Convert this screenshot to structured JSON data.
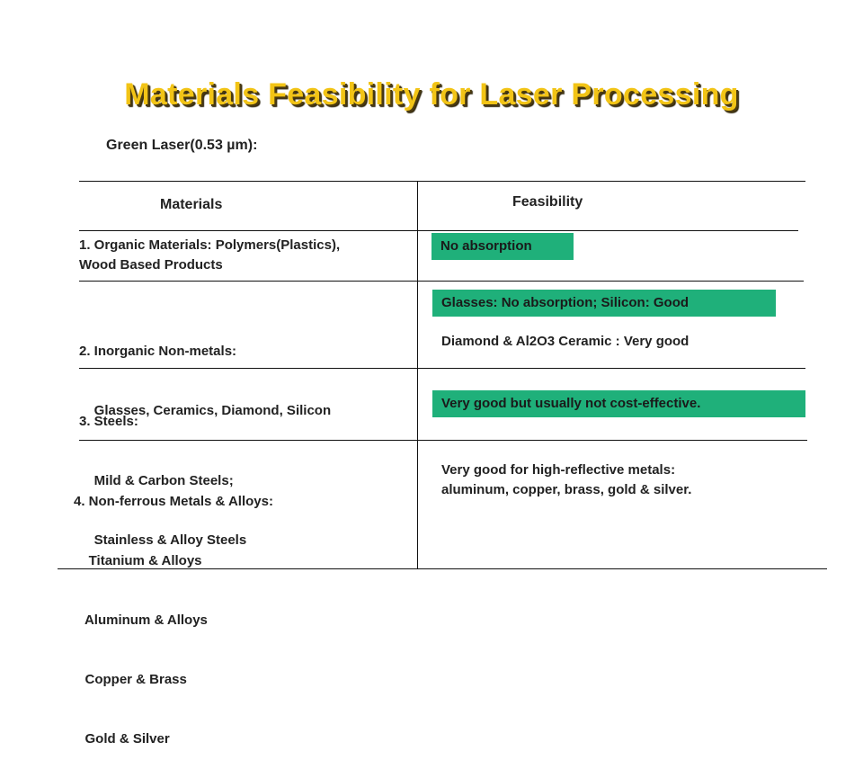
{
  "slide": {
    "title": "Materials Feasibility for Laser Processing",
    "subtitle": "Green Laser(0.53 µm):",
    "highlight_color": "#1fb07a",
    "title_color": "#f2c416"
  },
  "table": {
    "headers": {
      "materials": "Materials",
      "feasibility": "Feasibility"
    },
    "rows": [
      {
        "materials": [
          "1. Organic Materials: Polymers(Plastics),",
          "Wood Based Products"
        ],
        "feasibility_highlight": "No absorption"
      },
      {
        "materials": [
          "2. Inorganic Non-metals:",
          "    Glasses, Ceramics, Diamond, Silicon"
        ],
        "feasibility_highlight": "Glasses: No absorption; Silicon: Good",
        "feasibility_text": "Diamond & Al2O3 Ceramic : Very good"
      },
      {
        "materials": [
          "3. Steels:",
          "    Mild & Carbon Steels;",
          "    Stainless & Alloy Steels"
        ],
        "feasibility_highlight": "Very good but usually not cost-effective."
      },
      {
        "materials": [
          "4. Non-ferrous Metals & Alloys:",
          "    Titanium & Alloys",
          "   Aluminum & Alloys",
          "   Copper & Brass",
          "   Gold & Silver"
        ],
        "feasibility_text": [
          "Very good for high-reflective metals:",
          "aluminum, copper, brass, gold & silver."
        ]
      }
    ]
  }
}
